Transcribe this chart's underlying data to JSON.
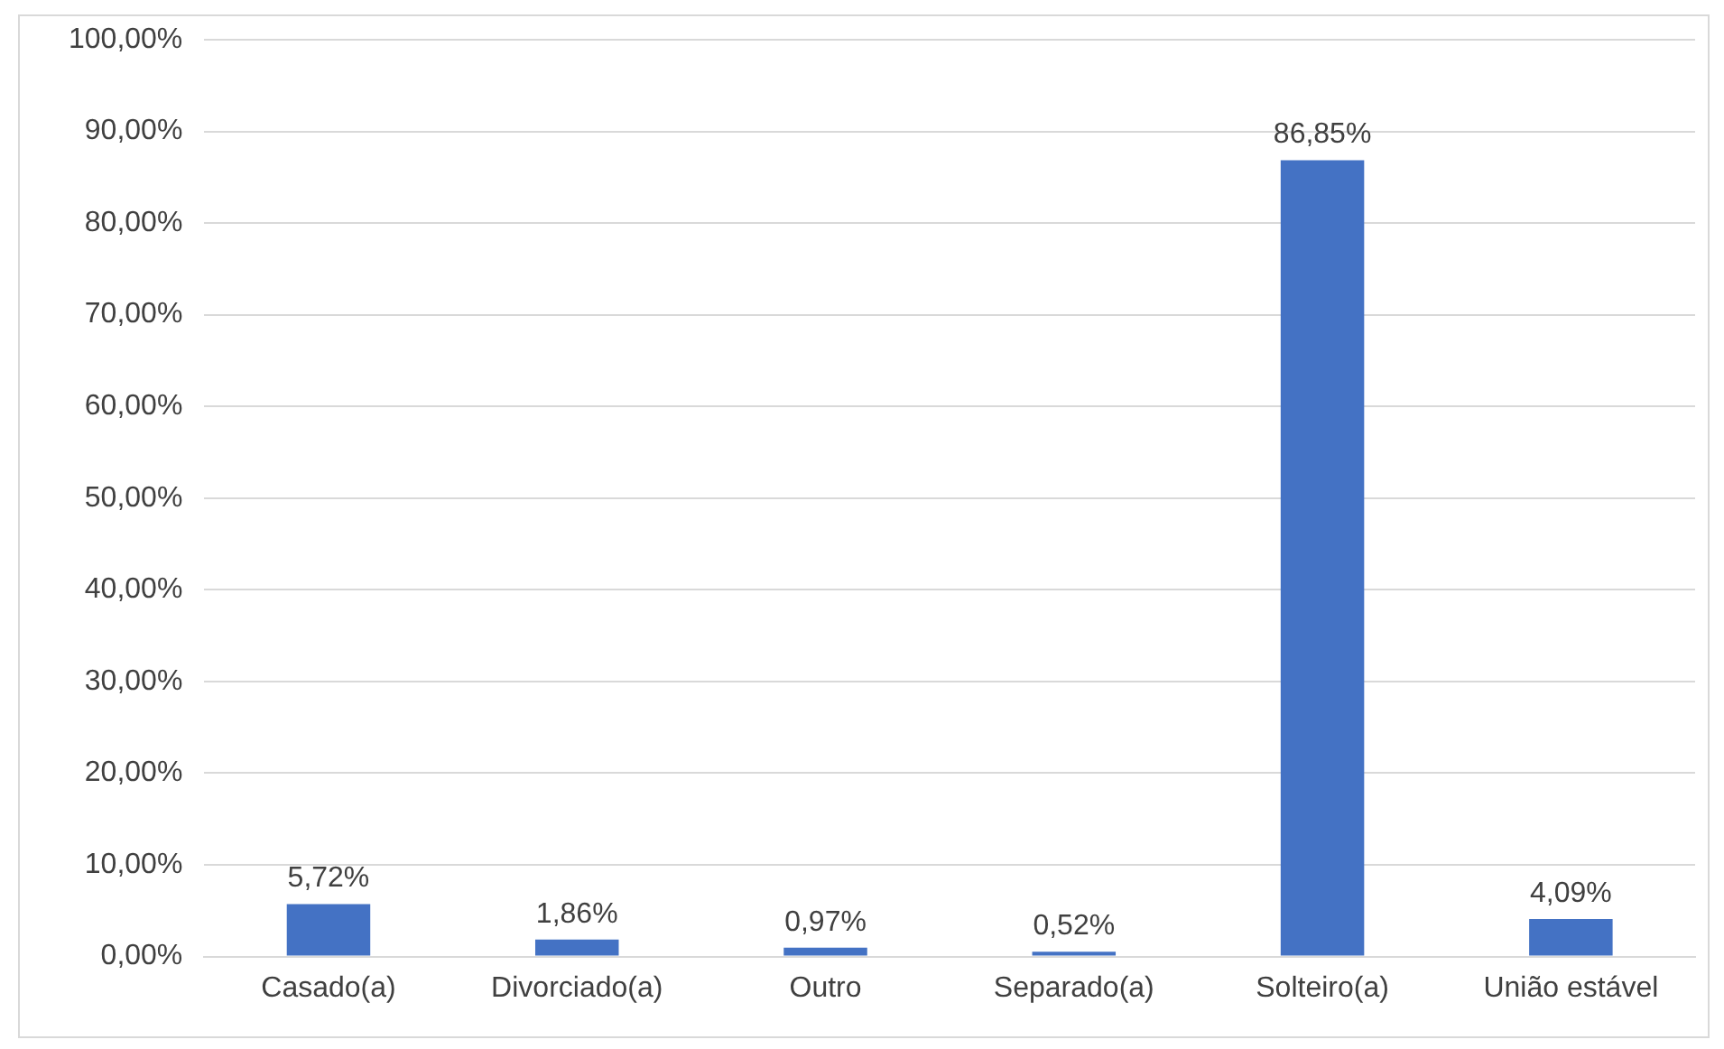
{
  "chart_data": {
    "type": "bar",
    "categories": [
      "Casado(a)",
      "Divorciado(a)",
      "Outro",
      "Separado(a)",
      "Solteiro(a)",
      "União estável"
    ],
    "values": [
      5.72,
      1.86,
      0.97,
      0.52,
      86.85,
      4.09
    ],
    "value_labels": [
      "5,72%",
      "1,86%",
      "0,97%",
      "0,52%",
      "86,85%",
      "4,09%"
    ],
    "color": "#4472c4",
    "ylim": [
      0,
      100
    ],
    "yticks": [
      {
        "value": 0,
        "label": "0,00%"
      },
      {
        "value": 10,
        "label": "10,00%"
      },
      {
        "value": 20,
        "label": "20,00%"
      },
      {
        "value": 30,
        "label": "30,00%"
      },
      {
        "value": 40,
        "label": "40,00%"
      },
      {
        "value": 50,
        "label": "50,00%"
      },
      {
        "value": 60,
        "label": "60,00%"
      },
      {
        "value": 70,
        "label": "70,00%"
      },
      {
        "value": 80,
        "label": "80,00%"
      },
      {
        "value": 90,
        "label": "90,00%"
      },
      {
        "value": 100,
        "label": "100,00%"
      }
    ],
    "grid": "y"
  }
}
